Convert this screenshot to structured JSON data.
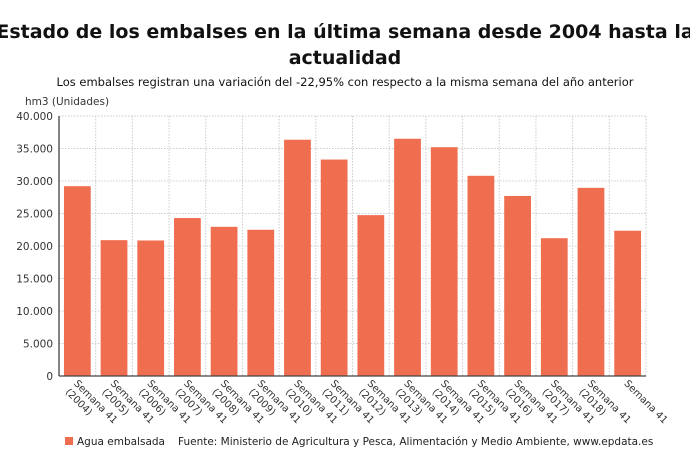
{
  "chart_data": {
    "type": "bar",
    "title": "Estado de los embalses en la última semana desde 2004 hasta la actualidad",
    "title_lines": [
      "Estado de los embalses en la última semana desde 2004 hasta la",
      "actualidad"
    ],
    "subtitle": "Los embalses registran una variación del -22,95% con respecto a la misma semana del año anterior",
    "ylabel": "hm3 (Unidades)",
    "xlabel": "",
    "ylim": [
      0,
      40000
    ],
    "yticks": [
      0,
      5000,
      10000,
      15000,
      20000,
      25000,
      30000,
      35000,
      40000
    ],
    "ytick_labels": [
      "0",
      "5.000",
      "10.000",
      "15.000",
      "20.000",
      "25.000",
      "30.000",
      "35.000",
      "40.000"
    ],
    "grid": true,
    "categories": [
      [
        "Semana 41",
        "(2004)"
      ],
      [
        "Semana 41",
        "(2005)"
      ],
      [
        "Semana 41",
        "(2006)"
      ],
      [
        "Semana 41",
        "(2007)"
      ],
      [
        "Semana 41",
        "(2008)"
      ],
      [
        "Semana 41",
        "(2009)"
      ],
      [
        "Semana 41",
        "(2010)"
      ],
      [
        "Semana 41",
        "(2011)"
      ],
      [
        "Semana 41",
        "(2012)"
      ],
      [
        "Semana 41",
        "(2013)"
      ],
      [
        "Semana 41",
        "(2014)"
      ],
      [
        "Semana 41",
        "(2015)"
      ],
      [
        "Semana 41",
        "(2016)"
      ],
      [
        "Semana 41",
        "(2017)"
      ],
      [
        "Semana 41",
        "(2018)"
      ],
      [
        "Semana 41",
        ""
      ]
    ],
    "series": [
      {
        "name": "Agua embalsada",
        "color": "#f06e50",
        "values": [
          29200,
          20900,
          20850,
          24300,
          22950,
          22500,
          36350,
          33300,
          24750,
          36500,
          35200,
          30800,
          27700,
          21200,
          28950,
          22350
        ]
      }
    ],
    "legend": "bottom-left",
    "source": "Fuente: Ministerio de Agricultura y Pesca, Alimentación y Medio Ambiente, www.epdata.es"
  }
}
